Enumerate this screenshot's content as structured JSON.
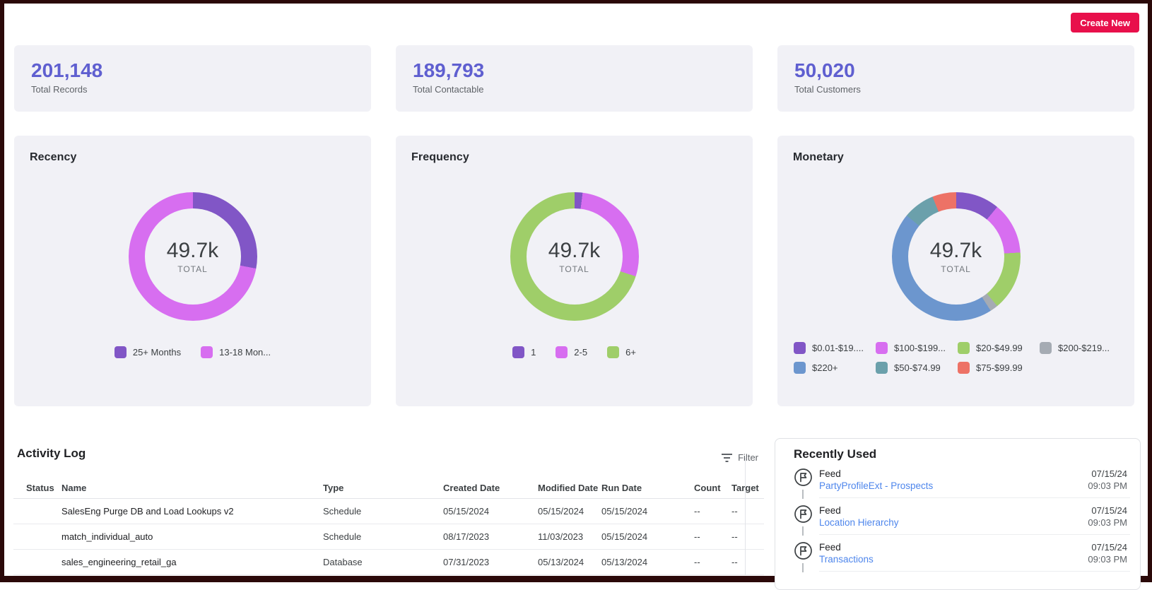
{
  "header": {
    "create_button": "Create New"
  },
  "stats": [
    {
      "value": "201,148",
      "label": "Total Records"
    },
    {
      "value": "189,793",
      "label": "Total Contactable"
    },
    {
      "value": "50,020",
      "label": "Total Customers"
    }
  ],
  "chart_data": [
    {
      "type": "pie",
      "title": "Recency",
      "center_value": "49.7k",
      "center_label": "TOTAL",
      "legend_position": "bottom",
      "segments": [
        {
          "label": "25+ Months",
          "color": "#8156c6",
          "pct": 28
        },
        {
          "label": "13-18 Mon...",
          "color": "#d76ef0",
          "pct": 72
        }
      ]
    },
    {
      "type": "pie",
      "title": "Frequency",
      "center_value": "49.7k",
      "center_label": "TOTAL",
      "legend_position": "bottom",
      "segments": [
        {
          "label": "1",
          "color": "#8156c6",
          "pct": 2
        },
        {
          "label": "2-5",
          "color": "#d76ef0",
          "pct": 28
        },
        {
          "label": "6+",
          "color": "#9fce69",
          "pct": 70
        }
      ]
    },
    {
      "type": "pie",
      "title": "Monetary",
      "center_value": "49.7k",
      "center_label": "TOTAL",
      "legend_position": "bottom",
      "segments": [
        {
          "label": "$0.01-$19....",
          "color": "#8156c6",
          "pct": 11
        },
        {
          "label": "$100-$199...",
          "color": "#d76ef0",
          "pct": 13
        },
        {
          "label": "$20-$49.99",
          "color": "#9fce69",
          "pct": 15
        },
        {
          "label": "$200-$219...",
          "color": "#a5abb3",
          "pct": 2
        },
        {
          "label": "$220+",
          "color": "#6c96ce",
          "pct": 45
        },
        {
          "label": "$50-$74.99",
          "color": "#6ba0ab",
          "pct": 8
        },
        {
          "label": "$75-$99.99",
          "color": "#ed7266",
          "pct": 6
        }
      ]
    }
  ],
  "activity_log": {
    "title": "Activity Log",
    "filter_label": "Filter",
    "columns": [
      "Status",
      "Name",
      "Type",
      "Created Date",
      "Modified Date",
      "Run Date",
      "Count",
      "Target"
    ],
    "rows": [
      {
        "name": "SalesEng Purge DB and Load Lookups v2",
        "type": "Schedule",
        "created": "05/15/2024",
        "modified": "05/15/2024",
        "run": "05/15/2024",
        "count": "--",
        "target": "--"
      },
      {
        "name": "match_individual_auto",
        "type": "Schedule",
        "created": "08/17/2023",
        "modified": "11/03/2023",
        "run": "05/15/2024",
        "count": "--",
        "target": "--"
      },
      {
        "name": "sales_engineering_retail_ga",
        "type": "Database",
        "created": "07/31/2023",
        "modified": "05/13/2024",
        "run": "05/13/2024",
        "count": "--",
        "target": "--"
      }
    ]
  },
  "recently_used": {
    "title": "Recently Used",
    "items": [
      {
        "kind": "Feed",
        "name": "PartyProfileExt - Prospects",
        "date": "07/15/24",
        "time": "09:03 PM"
      },
      {
        "kind": "Feed",
        "name": "Location Hierarchy",
        "date": "07/15/24",
        "time": "09:03 PM"
      },
      {
        "kind": "Feed",
        "name": "Transactions",
        "date": "07/15/24",
        "time": "09:03 PM"
      }
    ]
  },
  "colors": {
    "accent_button": "#e8104b",
    "stat_value": "#5f5fd0",
    "card_background": "#f1f1f6",
    "link": "#4e86ec",
    "frame_border": "#2b0909"
  }
}
